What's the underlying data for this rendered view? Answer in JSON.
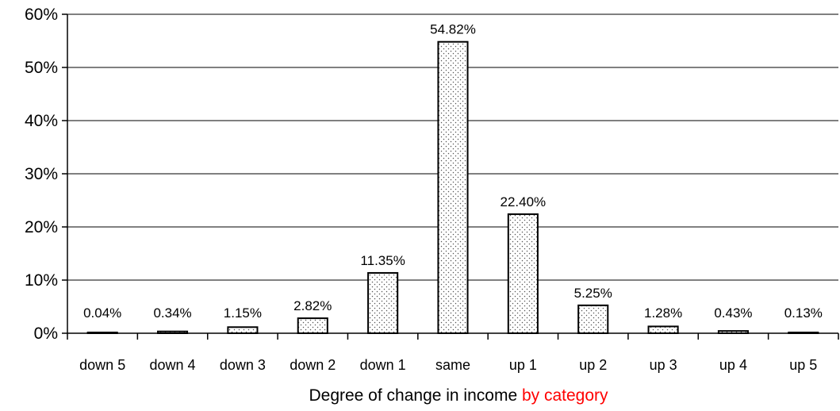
{
  "chart_data": {
    "type": "bar",
    "categories": [
      "down 5",
      "down 4",
      "down 3",
      "down 2",
      "down 1",
      "same",
      "up 1",
      "up 2",
      "up 3",
      "up 4",
      "up 5"
    ],
    "values": [
      0.04,
      0.34,
      1.15,
      2.82,
      11.35,
      54.82,
      22.4,
      5.25,
      1.28,
      0.43,
      0.13
    ],
    "data_labels": [
      "0.04%",
      "0.34%",
      "1.15%",
      "2.82%",
      "11.35%",
      "54.82%",
      "22.40%",
      "5.25%",
      "1.28%",
      "0.43%",
      "0.13%"
    ],
    "yticks": [
      0,
      10,
      20,
      30,
      40,
      50,
      60
    ],
    "ytick_labels": [
      "0%",
      "10%",
      "20%",
      "30%",
      "40%",
      "50%",
      "60%"
    ],
    "ylim": [
      0,
      60
    ],
    "xlabel_parts": [
      {
        "text": "Degree of change in income ",
        "color": "#000000"
      },
      {
        "text": "by category",
        "color": "#ff0000"
      }
    ],
    "grid": "horizontal major gridlines",
    "bar_fill": "dotted pattern",
    "colors": {
      "bar_dots": "#555555",
      "highlight_text": "#ff0000"
    }
  }
}
